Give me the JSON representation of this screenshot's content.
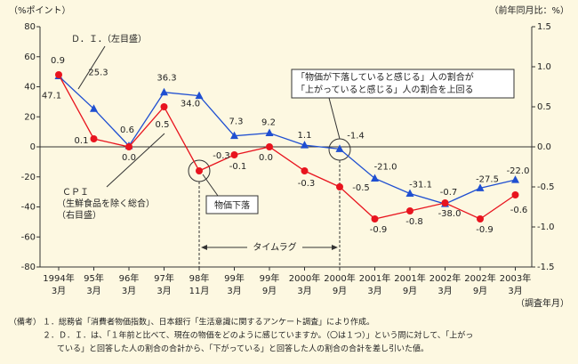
{
  "chart_data": {
    "type": "line",
    "y_label": "（%ポイント）",
    "y2_label": "（前年同月比：%）",
    "x_label": "（調査年月）",
    "categories": [
      "1994年",
      "95年",
      "96年",
      "97年",
      "98年",
      "99年",
      "99年",
      "2000年",
      "2000年",
      "2001年",
      "2001年",
      "2002年",
      "2002年",
      "2003年"
    ],
    "category_months": [
      "3月",
      "3月",
      "3月",
      "3月",
      "11月",
      "3月",
      "9月",
      "3月",
      "9月",
      "3月",
      "9月",
      "3月",
      "9月",
      "3月"
    ],
    "ylim": [
      -80,
      80
    ],
    "yticks": [
      -80,
      -60,
      -40,
      -20,
      0,
      20,
      40,
      60,
      80
    ],
    "y2lim": [
      -1.5,
      1.5
    ],
    "y2ticks": [
      -1.5,
      {
        "value": -1,
        "label": "-1.0"
      },
      -0.5,
      {
        "value": 0,
        "label": "0.0"
      },
      0.5,
      {
        "value": 1,
        "label": "1.0"
      },
      1.5
    ],
    "series": [
      {
        "name": "Ｄ．Ｉ．（左目盛）",
        "color": "#1f4fd1",
        "marker": "triangle",
        "values": [
          47.1,
          25.3,
          0.6,
          36.3,
          34.0,
          7.3,
          9.2,
          1.1,
          -1.4,
          -21.0,
          -31.1,
          -38.0,
          -27.5,
          -22.0
        ],
        "value_labels": [
          "47.1",
          "25.3",
          "0.6",
          "36.3",
          "34.0",
          "7.3",
          "9.2",
          "1.1",
          "-1.4",
          "-21.0",
          "-31.1",
          "-38.0",
          "-27.5",
          "-22.0"
        ]
      },
      {
        "name": "ＣＰＩ",
        "color": "#e8141e",
        "marker": "circle",
        "axis": "y2",
        "values": [
          0.9,
          0.1,
          0.0,
          0.5,
          -0.3,
          -0.1,
          0.0,
          -0.3,
          -0.5,
          -0.9,
          -0.8,
          -0.7,
          -0.9,
          -0.6
        ],
        "value_labels": [
          "0.9",
          "0.1",
          "0.0",
          "0.5",
          "-0.3",
          "-0.1",
          "0.0",
          "-0.3",
          "-0.5",
          "-0.9",
          "-0.8",
          "-0.7",
          "-0.9",
          "-0.6"
        ]
      }
    ],
    "annotations": {
      "cpi_detail": "（生鮮食品を除く総合）",
      "cpi_axis": "（右目盛）",
      "price_fall": "物価下落",
      "time_lag": "タイムラグ",
      "crossover_1": "「物価が下落していると感じる」人の割合が",
      "crossover_2": "「上がっていると感じる」人の割合を上回る"
    },
    "notes": [
      "（備考）",
      "１．総務省「消費者物価指数」、日本銀行「生活意識に関するアンケート調査」により作成。",
      "２．Ｄ．Ｉ．は、「１年前と比べて、現在の物価をどのように感じていますか。（〇は１つ）」という問に対して、「上がっ",
      "ている」と回答した人の割合の合計から、「下がっている」と回答した人の割合の合計を差し引いた値。"
    ]
  }
}
